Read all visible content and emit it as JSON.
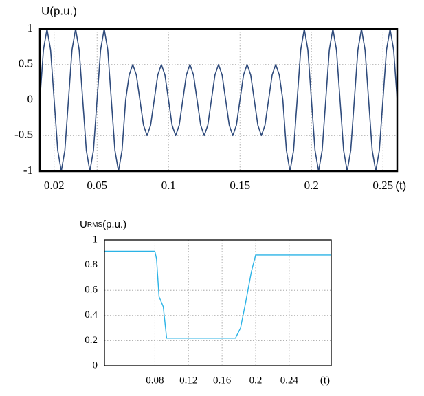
{
  "chart_data": [
    {
      "type": "line",
      "ylabel": "U(p.u.)",
      "xlabel": "(t)",
      "color": "#2f4b7c",
      "grid": true,
      "xlim": [
        0.01,
        0.26
      ],
      "ylim": [
        -1,
        1
      ],
      "xticks": [
        0.02,
        0.05,
        0.1,
        0.15,
        0.2,
        0.25
      ],
      "yticks": [
        -1,
        -0.5,
        0,
        0.5,
        1
      ],
      "x": [
        0.01,
        0.0125,
        0.015,
        0.0175,
        0.02,
        0.0225,
        0.025,
        0.0275,
        0.03,
        0.0325,
        0.035,
        0.0375,
        0.04,
        0.0425,
        0.045,
        0.0475,
        0.05,
        0.0525,
        0.055,
        0.0575,
        0.06,
        0.0625,
        0.065,
        0.0675,
        0.07,
        0.0725,
        0.075,
        0.0775,
        0.08,
        0.0825,
        0.085,
        0.0875,
        0.09,
        0.0925,
        0.095,
        0.0975,
        0.1,
        0.1025,
        0.105,
        0.1075,
        0.11,
        0.1125,
        0.115,
        0.1175,
        0.12,
        0.1225,
        0.125,
        0.1275,
        0.13,
        0.1325,
        0.135,
        0.1375,
        0.14,
        0.1425,
        0.145,
        0.1475,
        0.15,
        0.1525,
        0.155,
        0.1575,
        0.16,
        0.1625,
        0.165,
        0.1675,
        0.17,
        0.1725,
        0.175,
        0.1775,
        0.18,
        0.1825,
        0.185,
        0.1875,
        0.19,
        0.1925,
        0.195,
        0.1975,
        0.2,
        0.2025,
        0.205,
        0.2075,
        0.21,
        0.2125,
        0.215,
        0.2175,
        0.22,
        0.2225,
        0.225,
        0.2275,
        0.23,
        0.2325,
        0.235,
        0.2375,
        0.24,
        0.2425,
        0.245,
        0.2475,
        0.25,
        0.2525,
        0.255,
        0.2575,
        0.26
      ],
      "values": [
        0,
        0.707,
        1,
        0.707,
        0,
        -0.707,
        -1,
        -0.707,
        0,
        0.707,
        1,
        0.707,
        0,
        -0.707,
        -1,
        -0.707,
        0,
        0.707,
        1,
        0.707,
        0,
        -0.707,
        -1,
        -0.707,
        0,
        0.354,
        0.5,
        0.354,
        0,
        -0.354,
        -0.5,
        -0.354,
        0,
        0.354,
        0.5,
        0.354,
        0,
        -0.354,
        -0.5,
        -0.354,
        0,
        0.354,
        0.5,
        0.354,
        0,
        -0.354,
        -0.5,
        -0.354,
        0,
        0.354,
        0.5,
        0.354,
        0,
        -0.354,
        -0.5,
        -0.354,
        0,
        0.354,
        0.5,
        0.354,
        0,
        -0.354,
        -0.5,
        -0.354,
        0,
        0.354,
        0.5,
        0.354,
        0,
        -0.707,
        -1,
        -0.707,
        0,
        0.707,
        1,
        0.707,
        0,
        -0.707,
        -1,
        -0.707,
        0,
        0.707,
        1,
        0.707,
        0,
        -0.707,
        -1,
        -0.707,
        0,
        0.707,
        1,
        0.707,
        0,
        -0.707,
        -1,
        -0.707,
        0,
        0.707,
        1,
        0.707,
        0
      ]
    },
    {
      "type": "line",
      "ylabel": "U",
      "ylabel_subscript": "RMS",
      "ylabel_unit": "(p.u.)",
      "xlabel": "(t)",
      "color": "#2bb3e6",
      "grid": true,
      "xlim": [
        0.02,
        0.29
      ],
      "ylim": [
        0,
        1
      ],
      "xticks": [
        0.08,
        0.12,
        0.16,
        0.2,
        0.24
      ],
      "yticks": [
        0,
        0.2,
        0.4,
        0.6,
        0.8,
        1
      ],
      "x": [
        0.02,
        0.08,
        0.082,
        0.085,
        0.09,
        0.094,
        0.1,
        0.176,
        0.182,
        0.188,
        0.195,
        0.2,
        0.29
      ],
      "values": [
        0.91,
        0.91,
        0.85,
        0.55,
        0.47,
        0.22,
        0.22,
        0.22,
        0.3,
        0.5,
        0.75,
        0.88,
        0.88
      ]
    }
  ]
}
